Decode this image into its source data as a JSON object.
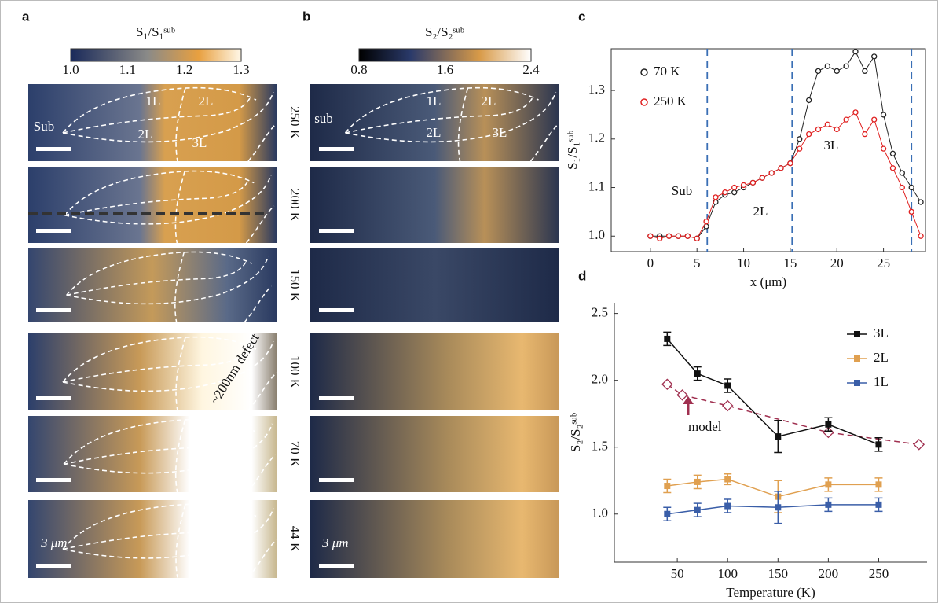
{
  "panel_a": {
    "letter": "a",
    "colorbar_title": "S₁/S₁ˢᵘᵇ",
    "colorbar_ticks": [
      "1.0",
      "1.1",
      "1.2",
      "1.3"
    ],
    "temperatures": [
      "250 K",
      "200 K",
      "150 K",
      "100 K",
      "70 K",
      "44 K"
    ],
    "regions": [
      "1L",
      "2L",
      "Sub",
      "2L",
      "3L"
    ],
    "defect": "~200nm defect",
    "scale": "3 μm"
  },
  "panel_b": {
    "letter": "b",
    "colorbar_title": "S₂/S₂ˢᵘᵇ",
    "colorbar_ticks": [
      "0.8",
      "1.6",
      "2.4"
    ],
    "regions": [
      "sub",
      "1L",
      "2L",
      "2L",
      "3L"
    ],
    "scale": "3 μm"
  },
  "chart_data": [
    {
      "type": "line",
      "letter": "c",
      "xlabel": "x (μm)",
      "ylabel": "S₁/S₁ˢᵘᵇ",
      "x": [
        0,
        1,
        2,
        3,
        4,
        5,
        6,
        7,
        8,
        9,
        10,
        11,
        12,
        13,
        14,
        15,
        16,
        17,
        18,
        19,
        20,
        21,
        22,
        23,
        24,
        25,
        26,
        27,
        28,
        29
      ],
      "series": [
        {
          "name": "70 K",
          "color": "#222222",
          "values": [
            1.0,
            1.0,
            1.0,
            1.0,
            1.0,
            0.995,
            1.02,
            1.07,
            1.085,
            1.09,
            1.1,
            1.11,
            1.12,
            1.13,
            1.14,
            1.15,
            1.2,
            1.28,
            1.34,
            1.35,
            1.34,
            1.35,
            1.38,
            1.34,
            1.37,
            1.25,
            1.17,
            1.13,
            1.1,
            1.07
          ]
        },
        {
          "name": "250 K",
          "color": "#e02020",
          "values": [
            1.0,
            0.995,
            1.0,
            1.0,
            1.0,
            0.995,
            1.03,
            1.08,
            1.09,
            1.1,
            1.105,
            1.11,
            1.12,
            1.13,
            1.14,
            1.15,
            1.18,
            1.21,
            1.22,
            1.23,
            1.22,
            1.24,
            1.255,
            1.21,
            1.24,
            1.18,
            1.14,
            1.1,
            1.05,
            1.0
          ]
        }
      ],
      "vlines": [
        6.1,
        15.2,
        28
      ],
      "vline_color": "#3a6fb5",
      "annotations": [
        "Sub",
        "2L",
        "3L"
      ],
      "xlim": [
        -4.2,
        29.5
      ],
      "ylim": [
        0.968,
        1.386
      ],
      "xticks": [
        0,
        5,
        10,
        15,
        20,
        25
      ],
      "yticks": [
        {
          "value": 1,
          "label": "1.0"
        },
        1.1,
        1.2,
        1.3
      ],
      "legend": "upper left",
      "grid": false
    },
    {
      "type": "errorbar",
      "letter": "d",
      "xlabel": "Temperature (K)",
      "ylabel": "S₂/S₂ˢᵘᵇ",
      "series": [
        {
          "name": "3L",
          "color": "#111111",
          "x": [
            40,
            70,
            100,
            150,
            200,
            250
          ],
          "values": [
            2.31,
            2.05,
            1.96,
            1.58,
            1.67,
            1.52
          ],
          "errors": [
            0.05,
            0.05,
            0.05,
            0.12,
            0.05,
            0.05
          ]
        },
        {
          "name": "2L",
          "color": "#e0a050",
          "x": [
            40,
            70,
            100,
            150,
            200,
            250
          ],
          "values": [
            1.21,
            1.24,
            1.26,
            1.13,
            1.22,
            1.22
          ],
          "errors": [
            0.05,
            0.05,
            0.04,
            0.12,
            0.05,
            0.05
          ]
        },
        {
          "name": "1L",
          "color": "#3a5ea8",
          "x": [
            40,
            70,
            100,
            150,
            200,
            250
          ],
          "values": [
            1.0,
            1.03,
            1.06,
            1.05,
            1.07,
            1.07
          ],
          "errors": [
            0.05,
            0.05,
            0.05,
            0.12,
            0.05,
            0.05
          ]
        }
      ],
      "model": {
        "name": "model",
        "color": "#a03050",
        "x": [
          40,
          55,
          100,
          200,
          290
        ],
        "values": [
          1.97,
          1.89,
          1.81,
          1.61,
          1.52
        ]
      },
      "xlim": [
        -12.5,
        298
      ],
      "ylim": [
        0.64,
        2.58
      ],
      "xticks": [
        50,
        100,
        150,
        200,
        250
      ],
      "yticks": [
        {
          "value": 1,
          "label": "1.0"
        },
        1.5,
        {
          "value": 2,
          "label": "2.0"
        },
        2.5
      ],
      "legend": "upper right",
      "grid": false
    }
  ]
}
